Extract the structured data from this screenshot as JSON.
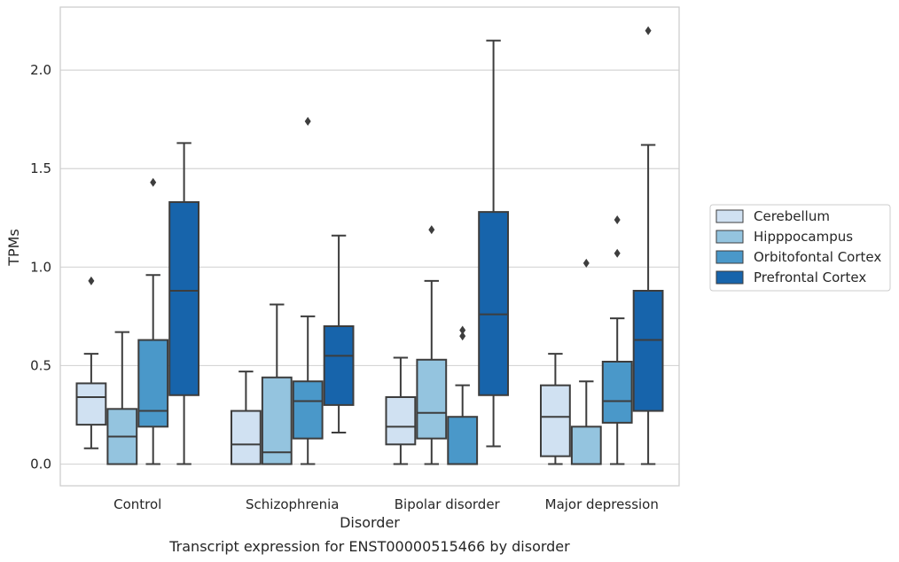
{
  "caption": "Transcript expression for ENST00000515466 by disorder",
  "chart_data": {
    "type": "box",
    "xlabel": "Disorder",
    "ylabel": "TPMs",
    "categories": [
      "Control",
      "Schizophrenia",
      "Bipolar disorder",
      "Major depression"
    ],
    "ylim": [
      -0.11,
      2.32
    ],
    "yticks": [
      0.0,
      0.5,
      1.0,
      1.5,
      2.0
    ],
    "ytick_labels": [
      "0.0",
      "0.5",
      "1.0",
      "1.5",
      "2.0"
    ],
    "grid": true,
    "legend_position": "right, outside the plot area",
    "series": [
      {
        "name": "Cerebellum",
        "color": "#d0e1f2",
        "boxes": [
          {
            "whislo": 0.08,
            "q1": 0.2,
            "med": 0.34,
            "q3": 0.41,
            "whishi": 0.56,
            "fliers": [
              0.93
            ]
          },
          {
            "whislo": 0.0,
            "q1": 0.0,
            "med": 0.1,
            "q3": 0.27,
            "whishi": 0.47,
            "fliers": []
          },
          {
            "whislo": 0.0,
            "q1": 0.1,
            "med": 0.19,
            "q3": 0.34,
            "whishi": 0.54,
            "fliers": []
          },
          {
            "whislo": 0.0,
            "q1": 0.04,
            "med": 0.24,
            "q3": 0.4,
            "whishi": 0.56,
            "fliers": []
          }
        ]
      },
      {
        "name": "Hipppocampus",
        "color": "#94c4df",
        "boxes": [
          {
            "whislo": 0.0,
            "q1": 0.0,
            "med": 0.14,
            "q3": 0.28,
            "whishi": 0.67,
            "fliers": []
          },
          {
            "whislo": 0.0,
            "q1": 0.0,
            "med": 0.06,
            "q3": 0.44,
            "whishi": 0.81,
            "fliers": []
          },
          {
            "whislo": 0.0,
            "q1": 0.13,
            "med": 0.26,
            "q3": 0.53,
            "whishi": 0.93,
            "fliers": [
              1.19
            ]
          },
          {
            "whislo": 0.0,
            "q1": 0.0,
            "med": 0.0,
            "q3": 0.19,
            "whishi": 0.42,
            "fliers": [
              1.02
            ]
          }
        ]
      },
      {
        "name": "Orbitofontal Cortex",
        "color": "#4a98c9",
        "boxes": [
          {
            "whislo": 0.0,
            "q1": 0.19,
            "med": 0.27,
            "q3": 0.63,
            "whishi": 0.96,
            "fliers": [
              1.43
            ]
          },
          {
            "whislo": 0.0,
            "q1": 0.13,
            "med": 0.32,
            "q3": 0.42,
            "whishi": 0.75,
            "fliers": [
              1.74
            ]
          },
          {
            "whislo": 0.0,
            "q1": 0.0,
            "med": 0.0,
            "q3": 0.24,
            "whishi": 0.4,
            "fliers": [
              0.65,
              0.68
            ]
          },
          {
            "whislo": 0.0,
            "q1": 0.21,
            "med": 0.32,
            "q3": 0.52,
            "whishi": 0.74,
            "fliers": [
              1.07,
              1.24
            ]
          }
        ]
      },
      {
        "name": "Prefrontal Cortex",
        "color": "#1764ab",
        "boxes": [
          {
            "whislo": 0.0,
            "q1": 0.35,
            "med": 0.88,
            "q3": 1.33,
            "whishi": 1.63,
            "fliers": []
          },
          {
            "whislo": 0.16,
            "q1": 0.3,
            "med": 0.55,
            "q3": 0.7,
            "whishi": 1.16,
            "fliers": []
          },
          {
            "whislo": 0.09,
            "q1": 0.35,
            "med": 0.76,
            "q3": 1.28,
            "whishi": 2.15,
            "fliers": []
          },
          {
            "whislo": 0.0,
            "q1": 0.27,
            "med": 0.63,
            "q3": 0.88,
            "whishi": 1.62,
            "fliers": [
              2.2
            ]
          }
        ]
      }
    ]
  }
}
